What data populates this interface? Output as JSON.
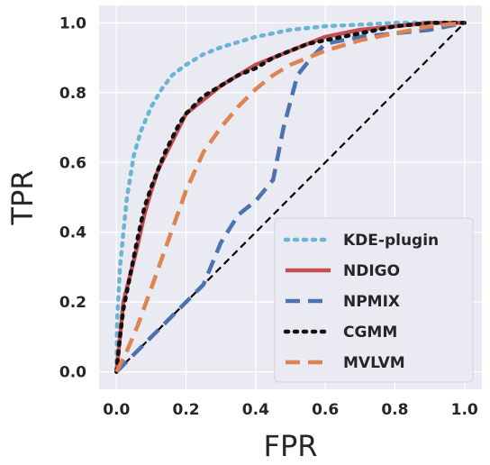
{
  "chart_data": {
    "type": "line",
    "xlabel": "FPR",
    "ylabel": "TPR",
    "xlim": [
      -0.05,
      1.05
    ],
    "ylim": [
      -0.05,
      1.05
    ],
    "x_ticks": [
      "0.0",
      "0.2",
      "0.4",
      "0.6",
      "0.8",
      "1.0"
    ],
    "y_ticks": [
      "0.0",
      "0.2",
      "0.4",
      "0.6",
      "0.8",
      "1.0"
    ],
    "grid": true,
    "background": "#eaeaf2",
    "legend_position": "lower-right",
    "diagonal": {
      "color": "#000000",
      "style": "dashed"
    },
    "series": [
      {
        "name": "KDE-plugin",
        "color": "#6bb4d4",
        "style": "dotted",
        "points": [
          [
            0,
            0
          ],
          [
            0.002,
            0.15
          ],
          [
            0.01,
            0.3
          ],
          [
            0.02,
            0.4
          ],
          [
            0.03,
            0.5
          ],
          [
            0.05,
            0.62
          ],
          [
            0.07,
            0.69
          ],
          [
            0.1,
            0.76
          ],
          [
            0.13,
            0.81
          ],
          [
            0.16,
            0.85
          ],
          [
            0.2,
            0.88
          ],
          [
            0.25,
            0.91
          ],
          [
            0.3,
            0.93
          ],
          [
            0.4,
            0.96
          ],
          [
            0.5,
            0.98
          ],
          [
            0.6,
            0.99
          ],
          [
            0.7,
            0.995
          ],
          [
            0.8,
            1.0
          ],
          [
            1.0,
            1.0
          ]
        ]
      },
      {
        "name": "NDIGO",
        "color": "#c44e52",
        "style": "solid",
        "points": [
          [
            0,
            0
          ],
          [
            0.01,
            0.1
          ],
          [
            0.02,
            0.2
          ],
          [
            0.04,
            0.28
          ],
          [
            0.06,
            0.36
          ],
          [
            0.08,
            0.45
          ],
          [
            0.1,
            0.52
          ],
          [
            0.12,
            0.58
          ],
          [
            0.14,
            0.62
          ],
          [
            0.16,
            0.66
          ],
          [
            0.18,
            0.7
          ],
          [
            0.2,
            0.74
          ],
          [
            0.25,
            0.78
          ],
          [
            0.3,
            0.82
          ],
          [
            0.35,
            0.85
          ],
          [
            0.4,
            0.88
          ],
          [
            0.45,
            0.9
          ],
          [
            0.5,
            0.92
          ],
          [
            0.55,
            0.94
          ],
          [
            0.6,
            0.96
          ],
          [
            0.65,
            0.97
          ],
          [
            0.7,
            0.98
          ],
          [
            0.8,
            0.99
          ],
          [
            0.9,
            1.0
          ],
          [
            1.0,
            1.0
          ]
        ]
      },
      {
        "name": "NPMIX",
        "color": "#4c72b0",
        "style": "dashed",
        "points": [
          [
            0,
            0
          ],
          [
            0.05,
            0.05
          ],
          [
            0.1,
            0.1
          ],
          [
            0.15,
            0.15
          ],
          [
            0.2,
            0.2
          ],
          [
            0.25,
            0.25
          ],
          [
            0.3,
            0.37
          ],
          [
            0.35,
            0.45
          ],
          [
            0.4,
            0.49
          ],
          [
            0.45,
            0.55
          ],
          [
            0.48,
            0.7
          ],
          [
            0.52,
            0.85
          ],
          [
            0.56,
            0.9
          ],
          [
            0.6,
            0.94
          ],
          [
            0.7,
            0.96
          ],
          [
            0.8,
            0.97
          ],
          [
            0.9,
            0.98
          ],
          [
            1.0,
            1.0
          ]
        ]
      },
      {
        "name": "CGMM",
        "color": "#111111",
        "style": "dotted",
        "points": [
          [
            0,
            0
          ],
          [
            0.01,
            0.1
          ],
          [
            0.02,
            0.18
          ],
          [
            0.04,
            0.28
          ],
          [
            0.06,
            0.38
          ],
          [
            0.08,
            0.47
          ],
          [
            0.1,
            0.53
          ],
          [
            0.12,
            0.58
          ],
          [
            0.14,
            0.63
          ],
          [
            0.16,
            0.67
          ],
          [
            0.18,
            0.71
          ],
          [
            0.2,
            0.74
          ],
          [
            0.25,
            0.79
          ],
          [
            0.3,
            0.82
          ],
          [
            0.35,
            0.85
          ],
          [
            0.4,
            0.87
          ],
          [
            0.45,
            0.9
          ],
          [
            0.5,
            0.92
          ],
          [
            0.55,
            0.94
          ],
          [
            0.6,
            0.95
          ],
          [
            0.7,
            0.97
          ],
          [
            0.8,
            0.99
          ],
          [
            0.9,
            1.0
          ],
          [
            1.0,
            1.0
          ]
        ]
      },
      {
        "name": "MVLVM",
        "color": "#dd8452",
        "style": "dashed",
        "points": [
          [
            0,
            0
          ],
          [
            0.03,
            0.06
          ],
          [
            0.06,
            0.13
          ],
          [
            0.1,
            0.24
          ],
          [
            0.15,
            0.38
          ],
          [
            0.2,
            0.52
          ],
          [
            0.25,
            0.63
          ],
          [
            0.3,
            0.7
          ],
          [
            0.35,
            0.76
          ],
          [
            0.4,
            0.81
          ],
          [
            0.45,
            0.85
          ],
          [
            0.5,
            0.88
          ],
          [
            0.55,
            0.9
          ],
          [
            0.6,
            0.92
          ],
          [
            0.7,
            0.95
          ],
          [
            0.8,
            0.97
          ],
          [
            0.9,
            0.99
          ],
          [
            1.0,
            1.0
          ]
        ]
      }
    ]
  }
}
